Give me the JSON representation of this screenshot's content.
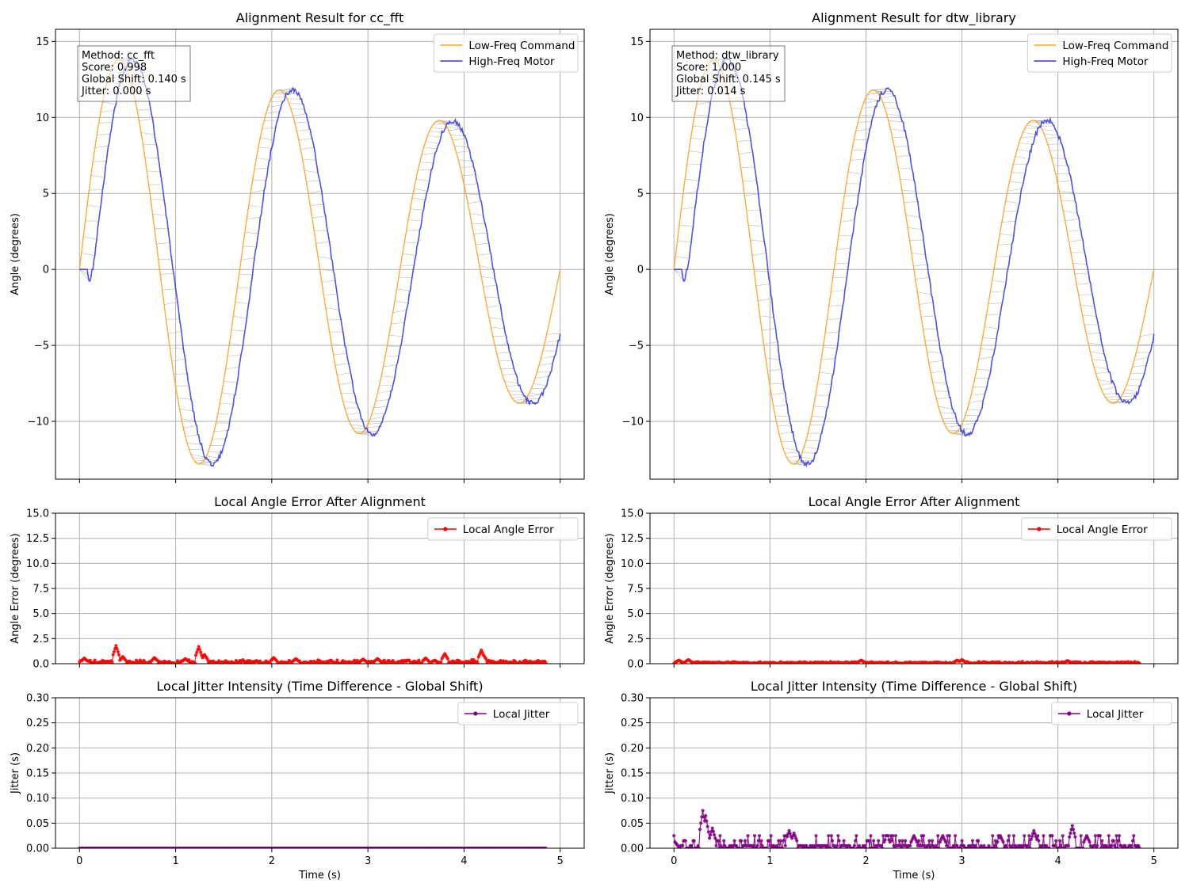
{
  "figure": {
    "background": "#ffffff",
    "colors": {
      "command": "#f5a623",
      "motor": "#3333dd",
      "connection": "#a9a9a9",
      "error": "#ff0000",
      "jitter": "#800080"
    }
  },
  "chart_data": [
    {
      "id": "cc_fft_alignment",
      "type": "line",
      "title": "Alignment Result for cc_fft",
      "xlabel": "",
      "ylabel": "Angle (degrees)",
      "xlim": [
        -0.25,
        5.25
      ],
      "ylim": [
        -13.8,
        15.8
      ],
      "yticks": [
        "−10",
        "−5",
        "0",
        "5",
        "10",
        "15"
      ],
      "ytick_values": [
        -10,
        -5,
        0,
        5,
        10,
        15
      ],
      "xtick_values": [
        0,
        1,
        2,
        3,
        4,
        5
      ],
      "xtick_labels": [],
      "grid": true,
      "legend": {
        "position": "upper right",
        "entries": [
          "Low-Freq Command",
          "High-Freq Motor"
        ]
      },
      "series": [
        {
          "name": "Low-Freq Command",
          "color": "#f5a623",
          "signal": "command",
          "amp_start": 14.3,
          "amp_end": 8.3,
          "freq_hz": 0.6,
          "t_end": 5.0
        },
        {
          "name": "High-Freq Motor",
          "color": "#3333dd",
          "signal": "motor",
          "delay_s": 0.14,
          "step_s": 0.05
        }
      ],
      "connections": {
        "color": "#a9a9a9",
        "description": "alignment lines"
      },
      "info_box": [
        "Method: cc_fft",
        "Score: 0.998",
        "Global Shift: 0.140 s",
        "Jitter: 0.000 s"
      ]
    },
    {
      "id": "dtw_library_alignment",
      "type": "line",
      "title": "Alignment Result for dtw_library",
      "xlabel": "",
      "ylabel": "Angle (degrees)",
      "xlim": [
        -0.25,
        5.25
      ],
      "ylim": [
        -13.8,
        15.8
      ],
      "yticks": [
        "−10",
        "−5",
        "0",
        "5",
        "10",
        "15"
      ],
      "ytick_values": [
        -10,
        -5,
        0,
        5,
        10,
        15
      ],
      "xtick_values": [
        0,
        1,
        2,
        3,
        4,
        5
      ],
      "xtick_labels": [],
      "grid": true,
      "legend": {
        "position": "upper right",
        "entries": [
          "Low-Freq Command",
          "High-Freq Motor"
        ]
      },
      "series": [
        {
          "name": "Low-Freq Command",
          "color": "#f5a623",
          "signal": "command",
          "amp_start": 14.3,
          "amp_end": 8.3,
          "freq_hz": 0.6,
          "t_end": 5.0
        },
        {
          "name": "High-Freq Motor",
          "color": "#3333dd",
          "signal": "motor",
          "delay_s": 0.145,
          "step_s": 0.05
        }
      ],
      "connections": {
        "color": "#a9a9a9",
        "description": "alignment lines"
      },
      "info_box": [
        "Method: dtw_library",
        "Score: 1.000",
        "Global Shift: 0.145 s",
        "Jitter: 0.014 s"
      ]
    },
    {
      "id": "cc_fft_error",
      "type": "line",
      "title": "Local Angle Error After Alignment",
      "xlabel": "",
      "ylabel": "Angle Error (degrees)",
      "xlim": [
        -0.25,
        5.25
      ],
      "ylim": [
        0,
        15
      ],
      "yticks": [
        "0.0",
        "2.5",
        "5.0",
        "7.5",
        "10.0",
        "12.5",
        "15.0"
      ],
      "ytick_values": [
        0,
        2.5,
        5,
        7.5,
        10,
        12.5,
        15
      ],
      "xtick_values": [
        0,
        1,
        2,
        3,
        4,
        5
      ],
      "xtick_labels": [],
      "grid": true,
      "legend": {
        "position": "upper right",
        "entries": [
          "Local Angle Error"
        ]
      },
      "series": [
        {
          "name": "Local Angle Error",
          "color": "#ff0000",
          "x_range": [
            0,
            4.85
          ],
          "baseline": 0.25,
          "noise": 0.35,
          "peaks": [
            [
              0.05,
              0.55
            ],
            [
              0.38,
              1.8
            ],
            [
              0.45,
              0.7
            ],
            [
              0.78,
              0.6
            ],
            [
              1.1,
              0.5
            ],
            [
              1.24,
              1.7
            ],
            [
              1.3,
              0.9
            ],
            [
              2.02,
              0.6
            ],
            [
              2.25,
              0.5
            ],
            [
              2.95,
              0.45
            ],
            [
              3.1,
              0.5
            ],
            [
              3.6,
              0.55
            ],
            [
              3.8,
              1.0
            ],
            [
              4.18,
              1.35
            ],
            [
              4.2,
              0.9
            ]
          ]
        }
      ]
    },
    {
      "id": "dtw_library_error",
      "type": "line",
      "title": "Local Angle Error After Alignment",
      "xlabel": "",
      "ylabel": "Angle Error (degrees)",
      "xlim": [
        -0.25,
        5.25
      ],
      "ylim": [
        0,
        15
      ],
      "yticks": [
        "0.0",
        "2.5",
        "5.0",
        "7.5",
        "10.0",
        "12.5",
        "15.0"
      ],
      "ytick_values": [
        0,
        2.5,
        5,
        7.5,
        10,
        12.5,
        15
      ],
      "xtick_values": [
        0,
        1,
        2,
        3,
        4,
        5
      ],
      "xtick_labels": [],
      "grid": true,
      "legend": {
        "position": "upper right",
        "entries": [
          "Local Angle Error"
        ]
      },
      "series": [
        {
          "name": "Local Angle Error",
          "color": "#ff0000",
          "x_range": [
            0,
            4.85
          ],
          "baseline": 0.15,
          "noise": 0.15,
          "peaks": [
            [
              0.05,
              0.35
            ],
            [
              0.15,
              0.4
            ],
            [
              1.95,
              0.35
            ],
            [
              2.95,
              0.35
            ],
            [
              3.0,
              0.4
            ],
            [
              4.1,
              0.3
            ]
          ]
        }
      ]
    },
    {
      "id": "cc_fft_jitter",
      "type": "line",
      "title": "Local Jitter Intensity (Time Difference - Global Shift)",
      "xlabel": "Time (s)",
      "ylabel": "Jitter (s)",
      "xlim": [
        -0.25,
        5.25
      ],
      "ylim": [
        0,
        0.3
      ],
      "yticks": [
        "0.00",
        "0.05",
        "0.10",
        "0.15",
        "0.20",
        "0.25",
        "0.30"
      ],
      "ytick_values": [
        0,
        0.05,
        0.1,
        0.15,
        0.2,
        0.25,
        0.3
      ],
      "xtick_values": [
        0,
        1,
        2,
        3,
        4,
        5
      ],
      "xtick_labels": [
        "0",
        "1",
        "2",
        "3",
        "4",
        "5"
      ],
      "grid": true,
      "legend": {
        "position": "upper right",
        "entries": [
          "Local Jitter"
        ]
      },
      "series": [
        {
          "name": "Local Jitter",
          "color": "#800080",
          "x_range": [
            0,
            4.85
          ],
          "constant": 0.0
        }
      ]
    },
    {
      "id": "dtw_library_jitter",
      "type": "line",
      "title": "Local Jitter Intensity (Time Difference - Global Shift)",
      "xlabel": "Time (s)",
      "ylabel": "Jitter (s)",
      "xlim": [
        -0.25,
        5.25
      ],
      "ylim": [
        0,
        0.3
      ],
      "yticks": [
        "0.00",
        "0.05",
        "0.10",
        "0.15",
        "0.20",
        "0.25",
        "0.30"
      ],
      "ytick_values": [
        0,
        0.05,
        0.1,
        0.15,
        0.2,
        0.25,
        0.3
      ],
      "xtick_values": [
        0,
        1,
        2,
        3,
        4,
        5
      ],
      "xtick_labels": [
        "0",
        "1",
        "2",
        "3",
        "4",
        "5"
      ],
      "grid": true,
      "legend": {
        "position": "upper right",
        "entries": [
          "Local Jitter"
        ]
      },
      "series": [
        {
          "name": "Local Jitter",
          "color": "#800080",
          "x_range": [
            0,
            4.85
          ],
          "levels": [
            0,
            0.005,
            0.015,
            0.025
          ],
          "peaks": [
            [
              0.0,
              0.015
            ],
            [
              0.3,
              0.075
            ],
            [
              0.33,
              0.065
            ],
            [
              0.4,
              0.04
            ],
            [
              1.2,
              0.035
            ],
            [
              1.25,
              0.03
            ],
            [
              2.22,
              0.025
            ],
            [
              2.5,
              0.025
            ],
            [
              2.8,
              0.025
            ],
            [
              3.4,
              0.025
            ],
            [
              3.75,
              0.035
            ],
            [
              4.15,
              0.045
            ],
            [
              4.3,
              0.025
            ]
          ]
        }
      ]
    }
  ]
}
